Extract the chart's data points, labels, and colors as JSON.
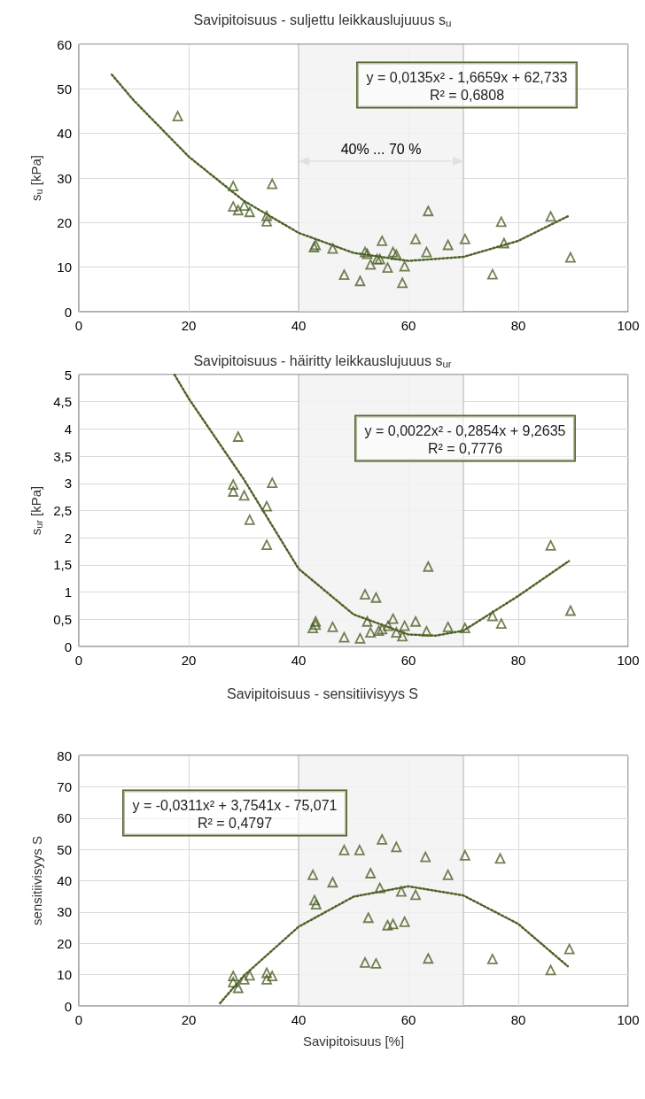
{
  "chart_data": [
    {
      "type": "scatter",
      "title": "Savipitoisuus - suljettu leikkauslujuuus s$_{u}$",
      "ylabel": "s$_{u}$ [kPa]",
      "xlim": [
        0,
        100
      ],
      "xticks": [
        0,
        20,
        40,
        60,
        80,
        100
      ],
      "ylim": [
        0,
        60
      ],
      "yticks": [
        0,
        10,
        20,
        30,
        40,
        50,
        60
      ],
      "grid": true,
      "annotations": [
        "y = 0,0135x² - 1,6659x + 62,733",
        "R² = 0,6808"
      ],
      "bands": [
        {
          "axis": "x",
          "from": 40,
          "to": 70,
          "label": "40% ... 70 %",
          "color": "#f2f2f2"
        }
      ],
      "series": [
        {
          "color": "#4f6228",
          "marker": "triangle",
          "x": [
            18.0,
            28.1,
            35.2,
            28.1,
            29.0,
            30.1,
            31.1,
            34.2,
            34.2,
            42.8,
            43.1,
            46.2,
            48.3,
            51.2,
            52.1,
            52.5,
            53.1,
            54.3,
            54.8,
            55.2,
            56.2,
            57.2,
            57.8,
            58.9,
            59.3,
            61.3,
            63.6,
            63.3,
            67.2,
            70.3,
            75.3,
            76.9,
            77.4,
            85.9,
            89.5
          ],
          "values": [
            43.9,
            28.2,
            28.7,
            23.6,
            22.8,
            23.8,
            22.4,
            21.5,
            20.3,
            14.5,
            15.0,
            14.2,
            8.3,
            6.9,
            13.4,
            13.0,
            10.6,
            11.8,
            11.8,
            15.9,
            9.9,
            13.4,
            12.8,
            6.5,
            10.2,
            16.3,
            22.6,
            13.4,
            15.0,
            16.3,
            8.4,
            20.2,
            15.4,
            21.4,
            12.2
          ]
        },
        {
          "type": "line",
          "color": "#4f6228",
          "line_style": "dotted",
          "marker": "none",
          "x": [
            6,
            10,
            20,
            30,
            40,
            50,
            60,
            70,
            80,
            89
          ],
          "values": [
            53.2,
            47.4,
            34.8,
            24.9,
            17.7,
            13.2,
            11.4,
            12.3,
            15.9,
            21.4
          ]
        }
      ]
    },
    {
      "type": "scatter",
      "title": "Savipitoisuus - häiritty leikkauslujuuus s$_{ur}$",
      "ylabel": "s$_{ur}$ [kPa]",
      "xlim": [
        0,
        100
      ],
      "xticks": [
        0,
        20,
        40,
        60,
        80,
        100
      ],
      "ylim": [
        0,
        5
      ],
      "yticks": [
        0,
        {
          "value": 0.5,
          "label": "0,5"
        },
        1,
        {
          "value": 1.5,
          "label": "1,5"
        },
        2,
        {
          "value": 2.5,
          "label": "2,5"
        },
        3,
        {
          "value": 3.5,
          "label": "3,5"
        },
        4,
        {
          "value": 4.5,
          "label": "4,5"
        },
        5
      ],
      "grid": true,
      "annotations": [
        "y = 0,0022x² - 0,2854x + 9,2635",
        "R² = 0,7776"
      ],
      "bands": [
        {
          "axis": "x",
          "from": 40,
          "to": 70,
          "color": "#f2f2f2"
        }
      ],
      "series": [
        {
          "color": "#4f6228",
          "marker": "triangle",
          "x": [
            29.0,
            28.1,
            28.1,
            30.1,
            35.2,
            34.2,
            31.1,
            34.2,
            42.6,
            43.1,
            43.1,
            46.2,
            48.3,
            51.2,
            52.1,
            54.1,
            52.5,
            53.1,
            54.6,
            55.2,
            56.3,
            57.2,
            57.8,
            58.9,
            59.3,
            61.3,
            63.6,
            63.3,
            67.2,
            70.3,
            75.3,
            76.9,
            85.9,
            89.5
          ],
          "values": [
            3.86,
            2.98,
            2.85,
            2.78,
            3.01,
            2.58,
            2.33,
            1.87,
            0.34,
            0.46,
            0.4,
            0.36,
            0.17,
            0.15,
            0.96,
            0.9,
            0.46,
            0.26,
            0.29,
            0.32,
            0.38,
            0.51,
            0.26,
            0.19,
            0.38,
            0.46,
            1.47,
            0.28,
            0.36,
            0.34,
            0.56,
            0.42,
            1.86,
            0.66
          ]
        },
        {
          "type": "line",
          "color": "#4f6228",
          "line_style": "dotted",
          "marker": "none",
          "x": [
            17.4,
            20,
            30,
            40,
            50,
            60,
            65,
            70,
            80,
            89.2
          ],
          "values": [
            5.0,
            4.56,
            3.08,
            1.43,
            0.59,
            0.22,
            0.2,
            0.29,
            0.93,
            1.57
          ]
        }
      ]
    },
    {
      "type": "scatter",
      "title": "Savipitoisuus - sensitiivisyys S",
      "ylabel": "sensitiivisyys S",
      "xlabel": "Savipitoisuus [%]",
      "xlim": [
        0,
        100
      ],
      "xticks": [
        0,
        20,
        40,
        60,
        80,
        100
      ],
      "ylim": [
        0,
        80
      ],
      "yticks": [
        0,
        10,
        20,
        30,
        40,
        50,
        60,
        70,
        80
      ],
      "grid": true,
      "annotations": [
        "y = -0,0311x² + 3,7541x - 75,071",
        "R² = 0,4797"
      ],
      "bands": [
        {
          "axis": "x",
          "from": 40,
          "to": 70,
          "color": "#f2f2f2"
        }
      ],
      "series": [
        {
          "color": "#4f6228",
          "marker": "triangle",
          "x": [
            55.2,
            48.3,
            51.1,
            57.8,
            63.1,
            70.3,
            76.7,
            42.6,
            53.1,
            67.2,
            46.2,
            54.8,
            58.7,
            61.3,
            42.9,
            43.2,
            52.7,
            56.2,
            57.2,
            59.3,
            89.3,
            52.1,
            54.1,
            63.6,
            75.3,
            28.1,
            28.1,
            29.0,
            30.1,
            31.1,
            34.2,
            34.2,
            35.2,
            85.9
          ],
          "values": [
            53.2,
            49.8,
            49.8,
            50.8,
            47.6,
            48.1,
            47.1,
            41.9,
            42.4,
            41.9,
            39.5,
            37.7,
            36.6,
            35.5,
            33.8,
            32.5,
            28.2,
            25.8,
            26.2,
            26.9,
            18.2,
            13.9,
            13.6,
            15.2,
            15.0,
            9.6,
            7.6,
            5.8,
            8.5,
            9.8,
            10.6,
            8.5,
            9.6,
            11.5
          ]
        },
        {
          "type": "line",
          "color": "#4f6228",
          "line_style": "dotted",
          "marker": "none",
          "x": [
            25.7,
            30,
            40,
            50,
            60,
            70,
            80,
            89
          ],
          "values": [
            0.9,
            9.6,
            25.3,
            34.9,
            38.2,
            35.3,
            26.2,
            12.7
          ]
        }
      ]
    }
  ]
}
